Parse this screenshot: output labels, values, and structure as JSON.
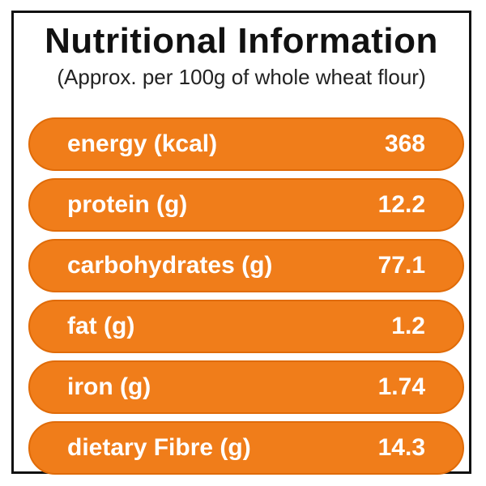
{
  "title": "Nutritional Information",
  "subtitle": "(Approx. per 100g of whole wheat flour)",
  "colors": {
    "row_background": "#f07d1a",
    "row_text": "#ffffff",
    "title_text": "#111111",
    "border": "#111111"
  },
  "nutrients": [
    {
      "label": "energy (kcal)",
      "value": "368"
    },
    {
      "label": "protein (g)",
      "value": "12.2"
    },
    {
      "label": "carbohydrates (g)",
      "value": "77.1"
    },
    {
      "label": "fat (g)",
      "value": "1.2"
    },
    {
      "label": "iron (g)",
      "value": "1.74"
    },
    {
      "label": "dietary Fibre (g)",
      "value": "14.3"
    }
  ]
}
